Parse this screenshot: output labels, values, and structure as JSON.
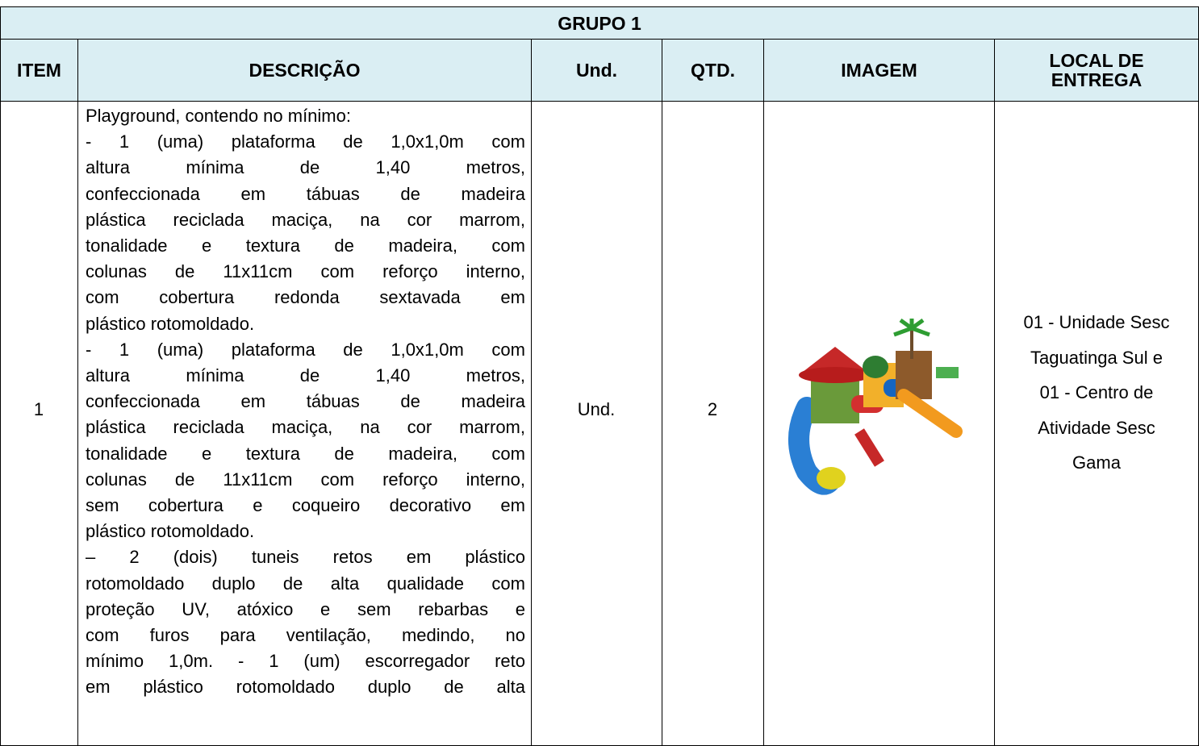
{
  "table": {
    "group_title": "GRUPO 1",
    "headers": [
      "ITEM",
      "DESCRIÇÃO",
      "Und.",
      "QTD.",
      "IMAGEM",
      "LOCAL DE ENTREGA"
    ],
    "rows": [
      {
        "item": "1",
        "description_lines": [
          "Playground, contendo no mínimo:",
          "- 1 (uma) plataforma de 1,0x1,0m com",
          "altura mínima de 1,40 metros,",
          "confeccionada em tábuas de madeira",
          "plástica reciclada maciça, na cor marrom,",
          "tonalidade e textura de madeira, com",
          "colunas de 11x11cm com reforço interno,",
          "com cobertura redonda sextavada em",
          "plástico rotomoldado.",
          "- 1 (uma) plataforma de 1,0x1,0m com",
          "altura mínima de 1,40 metros,",
          "confeccionada em tábuas de madeira",
          "plástica reciclada maciça, na cor marrom,",
          "tonalidade e textura de madeira, com",
          "colunas de 11x11cm com reforço interno,",
          "sem cobertura e coqueiro decorativo em",
          "plástico rotomoldado.",
          "– 2 (dois) tuneis retos em plástico",
          "rotomoldado duplo de alta qualidade com",
          "proteção UV, atóxico e sem rebarbas e",
          "com furos para ventilação, medindo, no",
          "mínimo 1,0m. - 1 (um) escorregador reto",
          "em plástico rotomoldado duplo de alta"
        ],
        "unit": "Und.",
        "qty": "2",
        "local_lines": [
          "01 - Unidade Sesc",
          "Taguatinga Sul e",
          "01 - Centro de",
          "Atividade Sesc",
          "Gama"
        ]
      }
    ]
  }
}
